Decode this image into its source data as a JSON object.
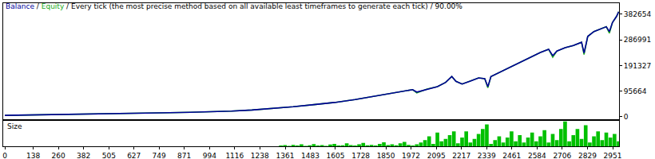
{
  "chart_data": [
    {
      "type": "line",
      "title": "Balance / Equity / Every tick (the most precise method based on all available least timeframes to generate each tick) / 90.00%",
      "x": [
        0,
        100,
        200,
        300,
        400,
        500,
        600,
        700,
        800,
        900,
        1000,
        1100,
        1200,
        1300,
        1400,
        1500,
        1600,
        1700,
        1800,
        1900,
        1950,
        1980,
        2000,
        2050,
        2100,
        2140,
        2170,
        2190,
        2220,
        2260,
        2300,
        2330,
        2345,
        2360,
        2400,
        2450,
        2500,
        2550,
        2600,
        2640,
        2660,
        2680,
        2720,
        2760,
        2800,
        2812,
        2830,
        2860,
        2890,
        2920,
        2935,
        2950,
        2970,
        2980
      ],
      "series": [
        {
          "name": "Equity",
          "color": "#22aa22",
          "values": [
            5000,
            6000,
            7000,
            8000,
            9000,
            10500,
            12000,
            13500,
            15000,
            16500,
            18000,
            21000,
            25000,
            30000,
            37000,
            45000,
            53000,
            64000,
            78000,
            90000,
            98000,
            101000,
            89000,
            103000,
            112000,
            128000,
            150000,
            132000,
            122000,
            133000,
            145000,
            142000,
            108000,
            150000,
            165000,
            185000,
            203000,
            222000,
            240000,
            252000,
            222000,
            245000,
            258000,
            266000,
            278000,
            232000,
            300000,
            318000,
            328000,
            336000,
            312000,
            352000,
            375000,
            392000
          ]
        },
        {
          "name": "Balance",
          "color": "#000099",
          "values": [
            5000,
            6000,
            7000,
            8000,
            9000,
            10500,
            12000,
            13500,
            15000,
            16500,
            18000,
            21000,
            25000,
            30000,
            37000,
            45000,
            53000,
            64000,
            78000,
            90000,
            98000,
            101000,
            92000,
            103000,
            112000,
            128000,
            150000,
            132000,
            122000,
            133000,
            145000,
            142000,
            112000,
            150000,
            165000,
            185000,
            203000,
            222000,
            240000,
            252000,
            228000,
            245000,
            258000,
            266000,
            278000,
            238000,
            300000,
            318000,
            328000,
            336000,
            318000,
            352000,
            375000,
            392000
          ]
        }
      ],
      "xlim": [
        -8,
        2982
      ],
      "ylim": [
        -9000,
        424000
      ],
      "yticks": [
        0,
        95664,
        191327,
        286991,
        382654
      ],
      "grid": false,
      "tick_labels": "y"
    },
    {
      "type": "bar",
      "title": "Size",
      "x": [
        1340,
        1360,
        1380,
        1400,
        1420,
        1440,
        1460,
        1480,
        1500,
        1520,
        1540,
        1560,
        1580,
        1600,
        1620,
        1640,
        1660,
        1680,
        1700,
        1720,
        1740,
        1760,
        1780,
        1800,
        1820,
        1840,
        1860,
        1880,
        1900,
        1920,
        1940,
        1960,
        1980,
        2000,
        2020,
        2040,
        2060,
        2080,
        2100,
        2120,
        2140,
        2160,
        2180,
        2200,
        2220,
        2240,
        2260,
        2280,
        2300,
        2320,
        2340,
        2360,
        2380,
        2400,
        2420,
        2440,
        2460,
        2480,
        2500,
        2520,
        2540,
        2560,
        2580,
        2600,
        2620,
        2640,
        2660,
        2680,
        2700,
        2720,
        2740,
        2760,
        2780,
        2800,
        2820,
        2840,
        2860,
        2880,
        2900,
        2920,
        2940,
        2960,
        2980
      ],
      "values": [
        3,
        5,
        2,
        6,
        3,
        8,
        2,
        4,
        9,
        3,
        5,
        2,
        7,
        10,
        3,
        4,
        12,
        5,
        3,
        8,
        14,
        4,
        6,
        3,
        10,
        16,
        5,
        8,
        4,
        12,
        18,
        6,
        3,
        8,
        15,
        25,
        40,
        10,
        55,
        20,
        30,
        45,
        60,
        12,
        35,
        60,
        15,
        30,
        50,
        70,
        88,
        10,
        25,
        40,
        15,
        35,
        60,
        20,
        45,
        15,
        35,
        55,
        20,
        40,
        65,
        15,
        50,
        25,
        70,
        100,
        20,
        45,
        70,
        30,
        85,
        15,
        40,
        60,
        25,
        55,
        35,
        50,
        20
      ],
      "color": "#00c000",
      "xlim": [
        -8,
        2982
      ],
      "ylim": [
        0,
        104
      ],
      "xticks": [
        0,
        138,
        260,
        382,
        505,
        627,
        749,
        871,
        994,
        1116,
        1238,
        1361,
        1483,
        1605,
        1728,
        1850,
        1972,
        2095,
        2217,
        2339,
        2461,
        2584,
        2706,
        2829,
        2951
      ],
      "grid": false,
      "tick_labels": "x"
    }
  ]
}
